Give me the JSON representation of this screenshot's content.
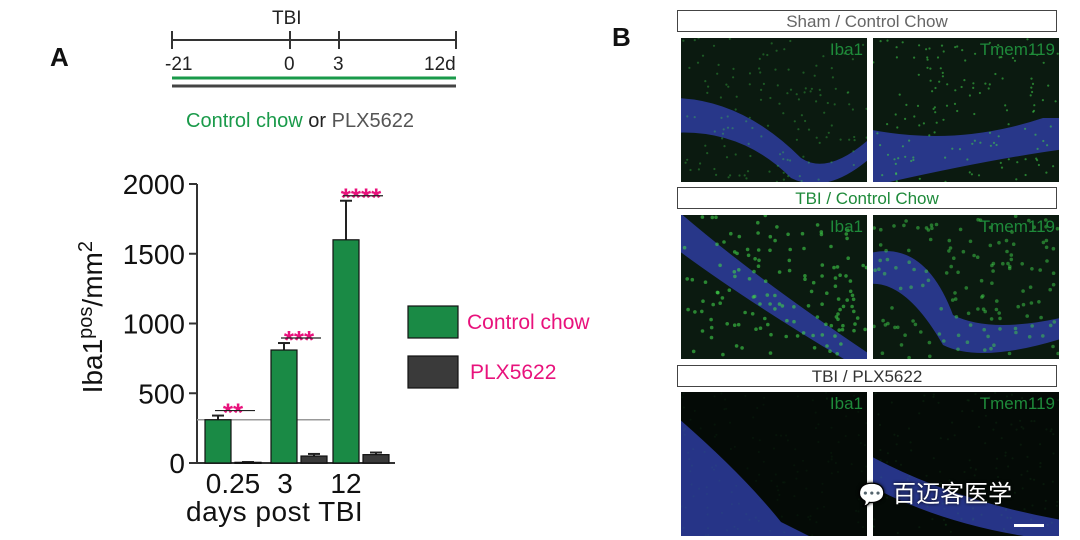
{
  "panel_a": {
    "label": "A",
    "timeline": {
      "event_label": "TBI",
      "ticks": [
        "-21",
        "0",
        "3",
        "12d"
      ],
      "legend_green": "Control chow",
      "legend_or": "or",
      "legend_gray": "PLX5622"
    }
  },
  "chart_data": {
    "type": "bar",
    "xlabel": "days post TBI",
    "ylabel": "Iba1pos/mm2",
    "ylabel_main": "Iba1",
    "ylabel_sup": "pos",
    "ylabel_unit": "/mm",
    "ylabel_unit_sup": "2",
    "categories": [
      "0.25",
      "3",
      "12"
    ],
    "ylim": [
      0,
      2000
    ],
    "yticks": [
      "0",
      "500",
      "1000",
      "1500",
      "2000"
    ],
    "series": [
      {
        "name": "Control chow",
        "color": "#1a8a45",
        "values": [
          310,
          810,
          1600
        ],
        "errors": [
          30,
          50,
          280
        ]
      },
      {
        "name": "PLX5622",
        "color": "#3a3a3a",
        "values": [
          5,
          50,
          60
        ],
        "errors": [
          2,
          15,
          15
        ]
      }
    ],
    "significance": [
      "**",
      "***",
      "****"
    ],
    "significance_color": "#e8127c",
    "reference_line": 310,
    "legend_position": "right",
    "grid": false
  },
  "panel_b": {
    "label": "B",
    "rows": [
      {
        "title": "Sham / Control Chow",
        "title_color": "#666666",
        "left_label": "Iba1",
        "right_label": "Tmem119"
      },
      {
        "title": "TBI / Control Chow",
        "title_color": "#1e8a3a",
        "left_label": "Iba1",
        "right_label": "Tmem119"
      },
      {
        "title": "TBI / PLX5622",
        "title_color": "#333333",
        "left_label": "Iba1",
        "right_label": "Tmem119"
      }
    ],
    "watermark": "百迈客医学"
  }
}
